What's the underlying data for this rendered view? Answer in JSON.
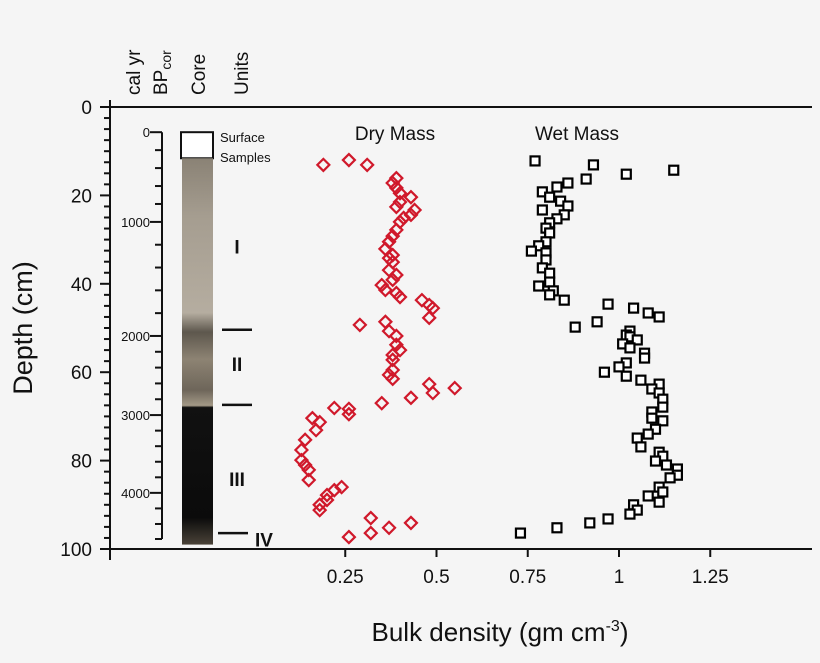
{
  "chart_data": {
    "type": "scatter",
    "xlabel": "Bulk density (gm cm",
    "xlabel_sup": "-3",
    "xlabel_end": ")",
    "ylabel": "Depth (cm)",
    "xlim": [
      0,
      1.5
    ],
    "ylim": [
      0,
      100
    ],
    "y_inverted": true,
    "grid": false,
    "x_ticks": [
      0.25,
      0.5,
      0.75,
      1,
      1.25
    ],
    "x_tick_labels": [
      "0.25",
      "0.5",
      "0.75",
      "1",
      "1.25"
    ],
    "y_ticks": [
      0,
      20,
      40,
      60,
      80,
      100
    ],
    "y_tick_labels": [
      "0",
      "20",
      "40",
      "60",
      "80",
      "100"
    ],
    "column_headers": {
      "age_line1": "cal yr",
      "age_line2": "BP",
      "age_line2_sub": "cor",
      "core": "Core",
      "units": "Units"
    },
    "age_axis": {
      "ticks": [
        {
          "label": "0",
          "depth": 5.7
        },
        {
          "label": "1000",
          "depth": 26.0
        },
        {
          "label": "2000",
          "depth": 51.8
        },
        {
          "label": "3000",
          "depth": 69.7
        },
        {
          "label": "4000",
          "depth": 87.3
        }
      ]
    },
    "core": {
      "surface_label_1": "Surface",
      "surface_label_2": "Samples",
      "surface_depth": [
        5.7,
        11.6
      ],
      "core_depth": [
        11.6,
        99
      ]
    },
    "units": [
      {
        "label": "I",
        "depth": 31.6
      },
      {
        "label": "II",
        "depth": 58.2
      },
      {
        "label": "III",
        "depth": 84.2
      },
      {
        "label": "IV",
        "depth": 97.8
      }
    ],
    "unit_boundaries": [
      50.4,
      67.4,
      96.4
    ],
    "series": [
      {
        "name": "Dry Mass",
        "color": "#d0192b",
        "marker": "diamond",
        "points": [
          [
            0.19,
            13.1
          ],
          [
            0.26,
            12.0
          ],
          [
            0.31,
            13.1
          ],
          [
            0.39,
            16.1
          ],
          [
            0.38,
            17.2
          ],
          [
            0.39,
            18.3
          ],
          [
            0.4,
            19.5
          ],
          [
            0.43,
            20.4
          ],
          [
            0.4,
            21.5
          ],
          [
            0.39,
            22.6
          ],
          [
            0.44,
            23.3
          ],
          [
            0.43,
            24.4
          ],
          [
            0.41,
            25.1
          ],
          [
            0.4,
            26.0
          ],
          [
            0.39,
            27.8
          ],
          [
            0.38,
            29.2
          ],
          [
            0.37,
            30.5
          ],
          [
            0.36,
            32.1
          ],
          [
            0.38,
            33.5
          ],
          [
            0.37,
            34.2
          ],
          [
            0.38,
            35.1
          ],
          [
            0.37,
            36.9
          ],
          [
            0.39,
            38.0
          ],
          [
            0.38,
            39.1
          ],
          [
            0.35,
            40.3
          ],
          [
            0.36,
            41.4
          ],
          [
            0.39,
            42.1
          ],
          [
            0.4,
            43.0
          ],
          [
            0.46,
            43.7
          ],
          [
            0.48,
            44.8
          ],
          [
            0.49,
            45.5
          ],
          [
            0.48,
            47.7
          ],
          [
            0.36,
            48.6
          ],
          [
            0.29,
            49.3
          ],
          [
            0.37,
            50.7
          ],
          [
            0.39,
            51.8
          ],
          [
            0.39,
            53.8
          ],
          [
            0.4,
            55.0
          ],
          [
            0.38,
            56.1
          ],
          [
            0.38,
            57.2
          ],
          [
            0.38,
            59.5
          ],
          [
            0.37,
            60.6
          ],
          [
            0.38,
            61.5
          ],
          [
            0.48,
            62.7
          ],
          [
            0.55,
            63.6
          ],
          [
            0.49,
            64.7
          ],
          [
            0.43,
            65.8
          ],
          [
            0.35,
            67.0
          ],
          [
            0.22,
            68.1
          ],
          [
            0.26,
            68.3
          ],
          [
            0.26,
            69.5
          ],
          [
            0.16,
            70.4
          ],
          [
            0.18,
            71.3
          ],
          [
            0.17,
            73.1
          ],
          [
            0.14,
            75.3
          ],
          [
            0.13,
            77.6
          ],
          [
            0.13,
            79.9
          ],
          [
            0.14,
            81.0
          ],
          [
            0.15,
            82.1
          ],
          [
            0.15,
            84.4
          ],
          [
            0.24,
            86.0
          ],
          [
            0.22,
            86.7
          ],
          [
            0.2,
            87.8
          ],
          [
            0.2,
            88.9
          ],
          [
            0.18,
            90.0
          ],
          [
            0.18,
            91.2
          ],
          [
            0.32,
            93.0
          ],
          [
            0.43,
            94.1
          ],
          [
            0.37,
            95.2
          ],
          [
            0.32,
            96.4
          ],
          [
            0.26,
            97.3
          ]
        ]
      },
      {
        "name": "Wet Mass",
        "color": "#000000",
        "marker": "square",
        "points": [
          [
            0.77,
            12.2
          ],
          [
            0.93,
            13.1
          ],
          [
            1.15,
            14.3
          ],
          [
            1.02,
            15.2
          ],
          [
            0.91,
            16.3
          ],
          [
            0.86,
            17.2
          ],
          [
            0.83,
            18.1
          ],
          [
            0.79,
            19.2
          ],
          [
            0.81,
            20.4
          ],
          [
            0.84,
            21.3
          ],
          [
            0.86,
            22.4
          ],
          [
            0.79,
            23.3
          ],
          [
            0.85,
            24.4
          ],
          [
            0.83,
            25.3
          ],
          [
            0.81,
            26.2
          ],
          [
            0.8,
            27.4
          ],
          [
            0.81,
            28.5
          ],
          [
            0.8,
            30.5
          ],
          [
            0.78,
            31.4
          ],
          [
            0.76,
            32.6
          ],
          [
            0.8,
            33.0
          ],
          [
            0.8,
            34.6
          ],
          [
            0.79,
            36.4
          ],
          [
            0.81,
            37.6
          ],
          [
            0.81,
            39.6
          ],
          [
            0.78,
            40.5
          ],
          [
            0.82,
            41.6
          ],
          [
            0.81,
            42.5
          ],
          [
            0.85,
            43.7
          ],
          [
            0.97,
            44.6
          ],
          [
            1.04,
            45.5
          ],
          [
            1.08,
            46.6
          ],
          [
            1.11,
            47.5
          ],
          [
            0.94,
            48.6
          ],
          [
            0.88,
            49.8
          ],
          [
            1.03,
            50.7
          ],
          [
            1.02,
            51.6
          ],
          [
            1.03,
            52.0
          ],
          [
            1.05,
            52.7
          ],
          [
            1.01,
            53.6
          ],
          [
            1.03,
            54.5
          ],
          [
            1.07,
            55.7
          ],
          [
            1.07,
            56.8
          ],
          [
            1.02,
            57.9
          ],
          [
            1.0,
            58.8
          ],
          [
            0.96,
            60.0
          ],
          [
            1.02,
            60.9
          ],
          [
            1.06,
            61.8
          ],
          [
            1.11,
            62.7
          ],
          [
            1.09,
            63.8
          ],
          [
            1.11,
            64.7
          ],
          [
            1.12,
            66.1
          ],
          [
            1.12,
            67.9
          ],
          [
            1.09,
            69.0
          ],
          [
            1.09,
            70.4
          ],
          [
            1.12,
            71.0
          ],
          [
            1.1,
            72.9
          ],
          [
            1.08,
            74.0
          ],
          [
            1.05,
            74.9
          ],
          [
            1.06,
            76.9
          ],
          [
            1.11,
            78.1
          ],
          [
            1.12,
            79.0
          ],
          [
            1.1,
            80.1
          ],
          [
            1.13,
            81.0
          ],
          [
            1.16,
            81.9
          ],
          [
            1.16,
            83.3
          ],
          [
            1.14,
            83.9
          ],
          [
            1.11,
            86.0
          ],
          [
            1.12,
            87.1
          ],
          [
            1.08,
            88.0
          ],
          [
            1.11,
            89.4
          ],
          [
            1.04,
            90.0
          ],
          [
            1.05,
            91.2
          ],
          [
            1.03,
            92.1
          ],
          [
            0.97,
            93.2
          ],
          [
            0.92,
            94.1
          ],
          [
            0.83,
            95.2
          ],
          [
            0.73,
            96.4
          ]
        ]
      }
    ]
  }
}
